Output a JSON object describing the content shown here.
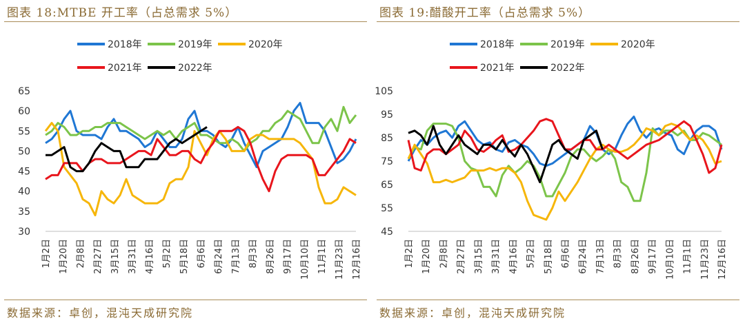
{
  "colors": {
    "2018年": "#1f77d4",
    "2019年": "#7cc44a",
    "2020年": "#f6b60a",
    "2021年": "#e8151c",
    "2022年": "#000000",
    "title": "#8a6a33"
  },
  "left": {
    "title": "图表 18:MTBE 开工率（占总需求 5%）",
    "source": "数据来源：卓创，混沌天成研究院"
  },
  "right": {
    "title": "图表 19:醋酸开工率（占总需求 5%）",
    "source": "数据来源：卓创，混沌天成研究院"
  },
  "chart_data": [
    {
      "type": "line",
      "title": "图表 18:MTBE 开工率（占总需求 5%）",
      "legend_position": "top",
      "grid": false,
      "ylim": [
        30,
        65
      ],
      "y_ticks": [
        30,
        35,
        40,
        45,
        50,
        55,
        60,
        65
      ],
      "x_labels": [
        "1月2日",
        "1月20日",
        "2月8日",
        "2月27日",
        "3月15日",
        "3月31日",
        "4月16日",
        "5月2日",
        "5月18日",
        "6月6日",
        "6月24日",
        "7月13日",
        "8月3日",
        "8月26日",
        "9月17日",
        "10月10日",
        "11月1日",
        "11月23日",
        "12月16日"
      ],
      "series": [
        {
          "name": "2018年",
          "values": [
            52,
            53,
            55,
            58,
            60,
            55,
            54,
            54,
            54,
            53,
            56,
            58,
            55,
            55,
            54,
            53,
            51,
            52,
            55,
            53,
            51,
            51,
            53,
            58,
            60,
            55,
            55,
            54,
            52,
            51,
            53,
            56,
            52,
            49,
            46,
            50,
            51,
            52,
            53,
            56,
            60,
            62,
            57,
            57,
            57,
            55,
            51,
            47,
            48,
            50,
            53
          ]
        },
        {
          "name": "2019年",
          "values": [
            54,
            55,
            57,
            56,
            54,
            54,
            55,
            55,
            56,
            56,
            57,
            57,
            57,
            56,
            55,
            54,
            53,
            54,
            55,
            54,
            55,
            53,
            55,
            56,
            57,
            54,
            54,
            53,
            52,
            52,
            53,
            52,
            50,
            52,
            53,
            55,
            55,
            57,
            58,
            60,
            59,
            58,
            55,
            52,
            52,
            56,
            58,
            55,
            61,
            57,
            59
          ]
        },
        {
          "name": "2020年",
          "values": [
            55,
            57,
            55,
            46,
            44,
            42,
            38,
            37,
            34,
            40,
            38,
            37,
            39,
            43,
            39,
            38,
            37,
            37,
            37,
            38,
            42,
            43,
            43,
            46,
            55,
            52,
            49,
            53,
            55,
            53,
            50,
            50,
            50,
            53,
            54,
            54,
            53,
            53,
            53,
            53,
            53,
            52,
            50,
            48,
            41,
            37,
            37,
            38,
            41,
            40,
            39
          ]
        },
        {
          "name": "2021年",
          "values": [
            43,
            44,
            44,
            47,
            47,
            47,
            45,
            47,
            48,
            48,
            47,
            47,
            47,
            48,
            49,
            50,
            50,
            49,
            53,
            51,
            49,
            49,
            50,
            50,
            48,
            47,
            50,
            52,
            55,
            55,
            55,
            56,
            55,
            52,
            47,
            43,
            40,
            45,
            48,
            49,
            49,
            49,
            49,
            48,
            44,
            44,
            46,
            48,
            50,
            53,
            52
          ]
        },
        {
          "name": "2022年",
          "values": [
            49,
            49,
            50,
            51,
            46,
            45,
            45,
            47,
            50,
            52,
            51,
            50,
            50,
            46,
            46,
            46,
            48,
            48,
            48,
            50,
            52,
            53,
            52,
            53,
            54,
            55,
            56
          ]
        }
      ]
    },
    {
      "type": "line",
      "title": "图表 19:醋酸开工率（占总需求 5%）",
      "legend_position": "top",
      "grid": false,
      "ylim": [
        45,
        105
      ],
      "y_ticks": [
        45,
        55,
        65,
        75,
        85,
        95,
        105
      ],
      "x_labels": [
        "1月2日",
        "1月20日",
        "2月8日",
        "2月27日",
        "3月15日",
        "3月31日",
        "4月16日",
        "5月2日",
        "5月18日",
        "6月6日",
        "6月24日",
        "7月13日",
        "8月3日",
        "8月26日",
        "9月17日",
        "10月10日",
        "11月1日",
        "11月23日",
        "12月16日"
      ],
      "series": [
        {
          "name": "2018年",
          "values": [
            75,
            80,
            84,
            82,
            85,
            87,
            88,
            85,
            90,
            92,
            88,
            84,
            82,
            83,
            80,
            79,
            83,
            84,
            82,
            81,
            78,
            74,
            73,
            74,
            76,
            78,
            80,
            82,
            84,
            90,
            87,
            80,
            78,
            80,
            86,
            91,
            94,
            88,
            85,
            88,
            89,
            87,
            86,
            80,
            78,
            84,
            88,
            90,
            90,
            88,
            80
          ]
        },
        {
          "name": "2019年",
          "values": [
            76,
            81,
            80,
            88,
            91,
            91,
            91,
            90,
            85,
            75,
            72,
            71,
            64,
            64,
            60,
            69,
            73,
            70,
            72,
            75,
            73,
            68,
            60,
            60,
            65,
            70,
            77,
            80,
            80,
            77,
            75,
            77,
            80,
            76,
            66,
            64,
            58,
            58,
            70,
            89,
            86,
            88,
            88,
            86,
            88,
            84,
            84,
            87,
            86,
            84,
            82
          ]
        },
        {
          "name": "2020年",
          "values": [
            76,
            82,
            78,
            74,
            66,
            66,
            67,
            66,
            67,
            68,
            71,
            71,
            71,
            72,
            71,
            72,
            72,
            70,
            66,
            58,
            52,
            51,
            50,
            55,
            62,
            58,
            62,
            66,
            71,
            76,
            80,
            82,
            80,
            79,
            79,
            80,
            82,
            85,
            89,
            88,
            86,
            90,
            91,
            90,
            87,
            84,
            86,
            84,
            80,
            74,
            75
          ]
        },
        {
          "name": "2021年",
          "values": [
            84,
            72,
            71,
            78,
            80,
            80,
            78,
            80,
            82,
            88,
            85,
            80,
            79,
            81,
            84,
            86,
            79,
            80,
            82,
            85,
            88,
            92,
            93,
            92,
            86,
            80,
            80,
            82,
            84,
            84,
            80,
            80,
            82,
            80,
            78,
            76,
            78,
            80,
            82,
            83,
            84,
            86,
            88,
            90,
            92,
            90,
            84,
            78,
            70,
            72,
            82
          ]
        },
        {
          "name": "2022年",
          "values": [
            87,
            88,
            86,
            82,
            90,
            82,
            78,
            82,
            86,
            82,
            80,
            78,
            82,
            82,
            80,
            84,
            80,
            77,
            82,
            78,
            72,
            66,
            74,
            82,
            84,
            80,
            78,
            76,
            84,
            86,
            88,
            80
          ]
        }
      ]
    }
  ]
}
